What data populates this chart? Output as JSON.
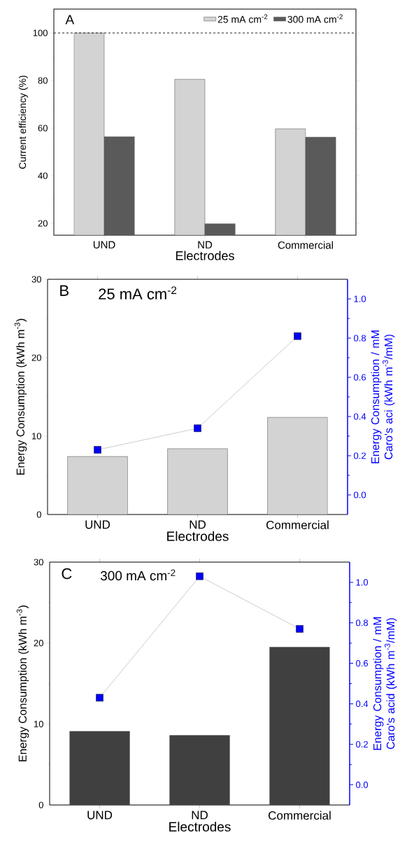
{
  "chart_data": [
    {
      "type": "bar",
      "annotations": [
        "A"
      ],
      "xlabel": "Electrodes",
      "ylabel": "Current efficiency (%)",
      "categories": [
        "UND",
        "ND",
        "Commercial"
      ],
      "series": [
        {
          "name": "25 mA cm$^{-2}$",
          "color": "#d3d3d3",
          "values": [
            100,
            80.5,
            59.7
          ]
        },
        {
          "name": "300 mA cm$^{-2}$",
          "color": "#5a5a5a",
          "values": [
            56.4,
            19.8,
            56.2
          ]
        }
      ],
      "ylim": [
        15,
        110
      ],
      "yticks": [
        20,
        40,
        60,
        80,
        100
      ],
      "ref_lines": [
        {
          "axis": "y",
          "value": 100,
          "color": "#000000",
          "line_style": "dashed"
        }
      ],
      "legend": "top right"
    },
    {
      "type": "bar",
      "annotations": [
        "B",
        "25 mA cm$^{-2}$"
      ],
      "xlabel": "Electrodes",
      "ylabel": "Energy Consumption (kWh m$^{-3}$)",
      "y2label": "Energy Consumption / mM Caro's aci (kWh m$^{-3}$/mM)",
      "categories": [
        "UND",
        "ND",
        "Commercial"
      ],
      "series": [
        {
          "color": "#d3d3d3",
          "values": [
            7.4,
            8.4,
            12.4
          ]
        },
        {
          "type": "line",
          "axis": "y2",
          "marker": "square",
          "color": "#0000ff",
          "values": [
            0.23,
            0.34,
            0.81
          ]
        }
      ],
      "ylim": [
        0,
        30
      ],
      "yticks": [
        0,
        10,
        20,
        30
      ],
      "y2lim": [
        -0.1,
        1.1
      ],
      "y2ticks": [
        {
          "value": 0,
          "label": "0.0"
        },
        {
          "value": 0.2,
          "label": "0.2"
        },
        {
          "value": 0.4,
          "label": "0.4"
        },
        {
          "value": 0.6,
          "label": "0.6"
        },
        {
          "value": 0.8,
          "label": "0.8"
        },
        {
          "value": 1,
          "label": "1.0"
        }
      ]
    },
    {
      "type": "bar",
      "annotations": [
        "C",
        "300 mA cm$^{-2}$"
      ],
      "xlabel": "Electrodes",
      "ylabel": "Energy Consumption (kWh m$^{-3}$)",
      "y2label": "Energy Consumption / mM Caro's acid (kWh m$^{-3}$/mM)",
      "categories": [
        "UND",
        "ND",
        "Commercial"
      ],
      "series": [
        {
          "color": "#404040",
          "values": [
            9.1,
            8.6,
            19.5
          ]
        },
        {
          "type": "line",
          "axis": "y2",
          "marker": "square",
          "color": "#0000ff",
          "values": [
            0.43,
            1.03,
            0.77
          ]
        }
      ],
      "ylim": [
        0,
        30
      ],
      "yticks": [
        0,
        10,
        20,
        30
      ],
      "y2lim": [
        -0.1,
        1.1
      ],
      "y2ticks": [
        {
          "value": 0,
          "label": "0.0"
        },
        {
          "value": 0.2,
          "label": "0.2"
        },
        {
          "value": 0.4,
          "label": "0.4"
        },
        {
          "value": 0.6,
          "label": "0.6"
        },
        {
          "value": 0.8,
          "label": "0.8"
        },
        {
          "value": 1,
          "label": "1.0"
        }
      ]
    }
  ]
}
